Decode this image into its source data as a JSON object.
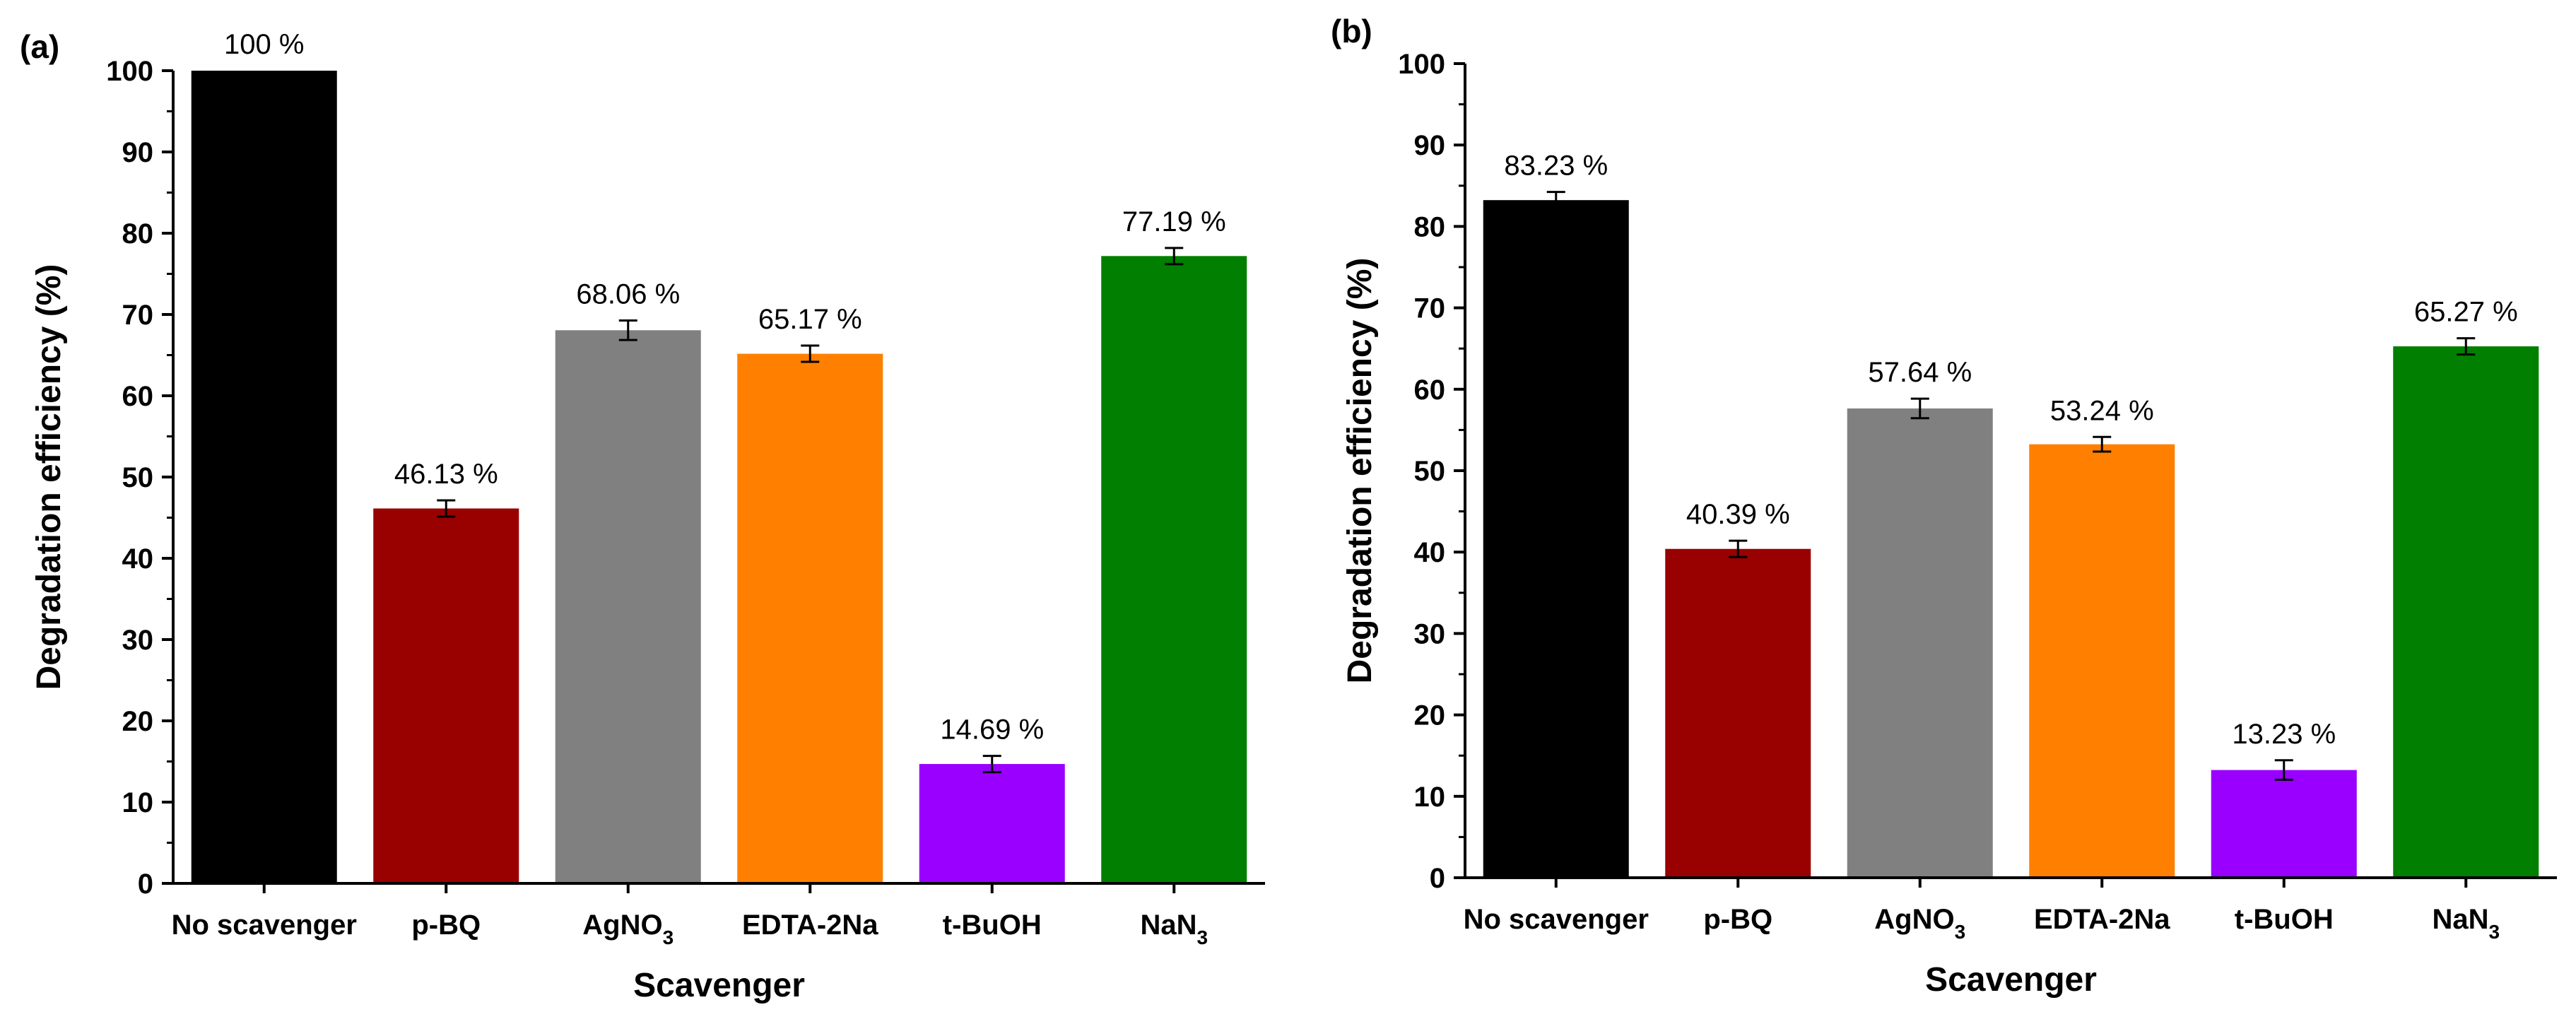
{
  "colors": {
    "no_scavenger": "#000000",
    "p_bq": "#990000",
    "agno3": "#808080",
    "edta": "#ff8000",
    "tbuoh": "#9900ff",
    "nan3": "#007f00"
  },
  "chart_data": [
    {
      "type": "bar",
      "panel_label": "(a)",
      "xlabel": "Scavenger",
      "ylabel": "Degradation efficiency (%)",
      "ylim": [
        0,
        100
      ],
      "yticks": [
        "0",
        "10",
        "20",
        "30",
        "40",
        "50",
        "60",
        "70",
        "80",
        "90",
        "100"
      ],
      "categories": [
        {
          "main": "No scavenger",
          "sub": ""
        },
        {
          "main": "p-BQ",
          "sub": ""
        },
        {
          "main": "AgNO",
          "sub": "3"
        },
        {
          "main": "EDTA-2Na",
          "sub": ""
        },
        {
          "main": "t-BuOH",
          "sub": ""
        },
        {
          "main": "NaN",
          "sub": "3"
        }
      ],
      "values": [
        100,
        46.13,
        68.06,
        65.17,
        14.69,
        77.19
      ],
      "errors": [
        0,
        1.0,
        1.2,
        1.0,
        1.0,
        1.0
      ],
      "value_labels": [
        "100 %",
        "46.13 %",
        "68.06 %",
        "65.17 %",
        "14.69 %",
        "77.19 %"
      ],
      "bar_colors": [
        "#000000",
        "#990000",
        "#808080",
        "#ff8000",
        "#9900ff",
        "#007f00"
      ]
    },
    {
      "type": "bar",
      "panel_label": "(b)",
      "xlabel": "Scavenger",
      "ylabel": "Degradation efficiency (%)",
      "ylim": [
        0,
        100
      ],
      "yticks": [
        "0",
        "10",
        "20",
        "30",
        "40",
        "50",
        "60",
        "70",
        "80",
        "90",
        "100"
      ],
      "categories": [
        {
          "main": "No scavenger",
          "sub": ""
        },
        {
          "main": "p-BQ",
          "sub": ""
        },
        {
          "main": "AgNO",
          "sub": "3"
        },
        {
          "main": "EDTA-2Na",
          "sub": ""
        },
        {
          "main": "t-BuOH",
          "sub": ""
        },
        {
          "main": "NaN",
          "sub": "3"
        }
      ],
      "values": [
        83.23,
        40.39,
        57.64,
        53.24,
        13.23,
        65.27
      ],
      "errors": [
        1.0,
        1.0,
        1.2,
        0.9,
        1.2,
        1.0
      ],
      "value_labels": [
        "83.23 %",
        "40.39 %",
        "57.64 %",
        "53.24 %",
        "13.23 %",
        "65.27 %"
      ],
      "bar_colors": [
        "#000000",
        "#990000",
        "#808080",
        "#ff8000",
        "#9900ff",
        "#007f00"
      ]
    }
  ]
}
